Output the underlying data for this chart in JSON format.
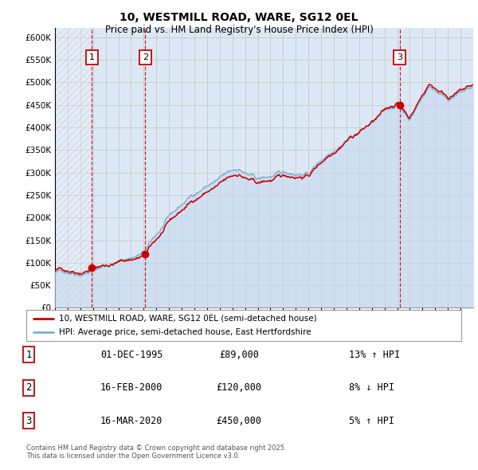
{
  "title": "10, WESTMILL ROAD, WARE, SG12 0EL",
  "subtitle": "Price paid vs. HM Land Registry's House Price Index (HPI)",
  "ylim": [
    0,
    620000
  ],
  "xlim_start": 1993.0,
  "xlim_end": 2026.0,
  "sale_dates": [
    1995.917,
    2000.125,
    2020.208
  ],
  "sale_prices": [
    89000,
    120000,
    450000
  ],
  "sale_labels": [
    "1",
    "2",
    "3"
  ],
  "sale_date_strs": [
    "01-DEC-1995",
    "16-FEB-2000",
    "16-MAR-2020"
  ],
  "legend_line1": "10, WESTMILL ROAD, WARE, SG12 0EL (semi-detached house)",
  "legend_line2": "HPI: Average price, semi-detached house, East Hertfordshire",
  "footer": "Contains HM Land Registry data © Crown copyright and database right 2025.\nThis data is licensed under the Open Government Licence v3.0.",
  "table_rows": [
    [
      "1",
      "01-DEC-1995",
      "£89,000",
      "13% ↑ HPI"
    ],
    [
      "2",
      "16-FEB-2000",
      "£120,000",
      "8% ↓ HPI"
    ],
    [
      "3",
      "16-MAR-2020",
      "£450,000",
      "5% ↑ HPI"
    ]
  ],
  "hpi_color": "#7bafd4",
  "hpi_fill_color": "#c5d9ee",
  "sale_line_color": "#cc0000",
  "dashed_line_color": "#cc0000",
  "grid_color": "#cccccc",
  "panel_bg": "#dce8f5"
}
